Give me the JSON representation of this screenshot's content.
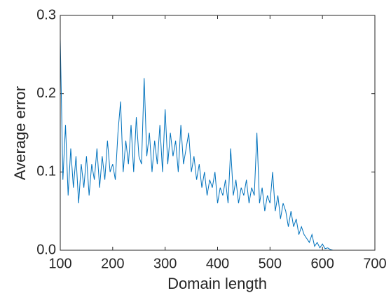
{
  "chart_data": {
    "type": "line",
    "x_label": "Domain length",
    "y_label": "Average error",
    "x": [
      100,
      105,
      110,
      115,
      120,
      125,
      130,
      135,
      140,
      145,
      150,
      155,
      160,
      165,
      170,
      175,
      180,
      185,
      190,
      195,
      200,
      205,
      210,
      215,
      220,
      225,
      230,
      235,
      240,
      245,
      250,
      255,
      260,
      265,
      270,
      275,
      280,
      285,
      290,
      295,
      300,
      305,
      310,
      315,
      320,
      325,
      330,
      335,
      340,
      345,
      350,
      355,
      360,
      365,
      370,
      375,
      380,
      385,
      390,
      395,
      400,
      405,
      410,
      415,
      420,
      425,
      430,
      435,
      440,
      445,
      450,
      455,
      460,
      465,
      470,
      475,
      480,
      485,
      490,
      495,
      500,
      505,
      510,
      515,
      520,
      525,
      530,
      535,
      540,
      545,
      550,
      555,
      560,
      565,
      570,
      575,
      580,
      585,
      590,
      595,
      600,
      605,
      610,
      615,
      620,
      625,
      630,
      635,
      640,
      645,
      650,
      655,
      660,
      665,
      670,
      675,
      680,
      685,
      690,
      695,
      700
    ],
    "series": [
      {
        "name": "Average error",
        "color": "#0072bd",
        "values": [
          0.27,
          0.09,
          0.16,
          0.07,
          0.13,
          0.08,
          0.12,
          0.06,
          0.11,
          0.08,
          0.12,
          0.07,
          0.11,
          0.09,
          0.13,
          0.08,
          0.12,
          0.09,
          0.14,
          0.1,
          0.11,
          0.09,
          0.15,
          0.19,
          0.1,
          0.14,
          0.11,
          0.16,
          0.1,
          0.17,
          0.12,
          0.11,
          0.22,
          0.12,
          0.15,
          0.1,
          0.14,
          0.11,
          0.16,
          0.1,
          0.18,
          0.11,
          0.15,
          0.12,
          0.14,
          0.1,
          0.16,
          0.11,
          0.13,
          0.15,
          0.1,
          0.12,
          0.09,
          0.11,
          0.08,
          0.1,
          0.07,
          0.09,
          0.08,
          0.1,
          0.06,
          0.08,
          0.07,
          0.09,
          0.06,
          0.13,
          0.07,
          0.09,
          0.06,
          0.08,
          0.07,
          0.09,
          0.06,
          0.08,
          0.07,
          0.15,
          0.06,
          0.08,
          0.05,
          0.07,
          0.06,
          0.1,
          0.05,
          0.07,
          0.04,
          0.06,
          0.05,
          0.03,
          0.05,
          0.03,
          0.04,
          0.02,
          0.03,
          0.02,
          0.015,
          0.01,
          0.02,
          0.005,
          0.01,
          0.003,
          0.008,
          0.002,
          0.003,
          0.001,
          0,
          0,
          0,
          0,
          0,
          0,
          0,
          0,
          0,
          0,
          0,
          0,
          0,
          0,
          0,
          0,
          0
        ]
      }
    ],
    "xlim": [
      100,
      700
    ],
    "xticks": [
      100,
      200,
      300,
      400,
      500,
      600,
      700
    ],
    "ylim": [
      0,
      0.3
    ],
    "yticks": [
      {
        "value": 0,
        "label": "0.0"
      },
      0.1,
      0.2,
      0.3
    ]
  }
}
